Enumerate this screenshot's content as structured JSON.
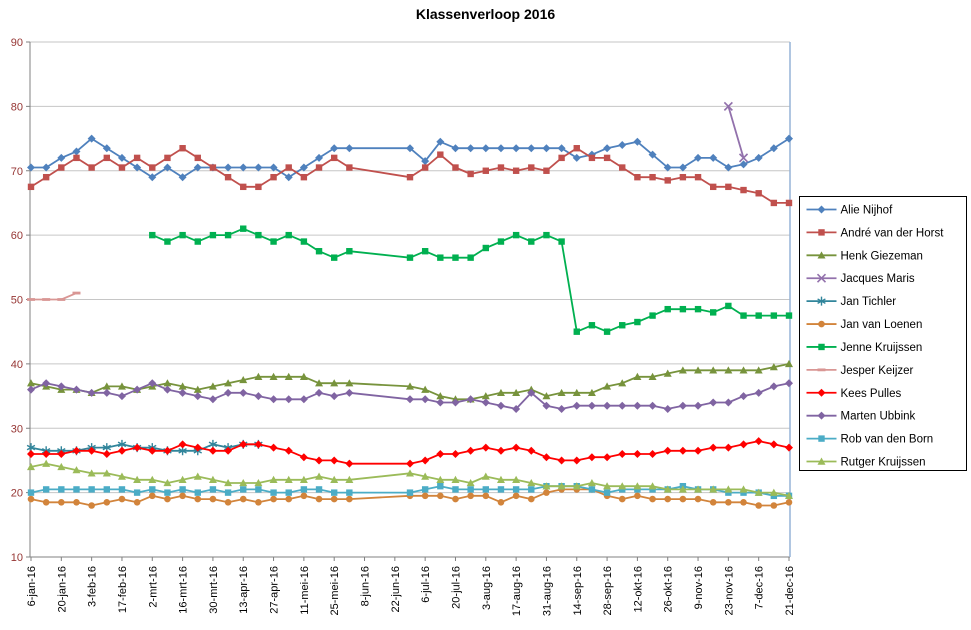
{
  "title": "Klassenverloop 2016",
  "colors": {
    "background": "#FFFFFF",
    "gridline": "#C6C6C6",
    "axis_line": "#808080",
    "y_label_color": "#963634",
    "x_label_color": "#000000",
    "plot_right_border": "#95B3D7",
    "legend_border": "#000000",
    "title_color": "#000000"
  },
  "y_axis": {
    "labels": [
      "90",
      "80",
      "70",
      "60",
      "50",
      "40",
      "30",
      "20",
      "10"
    ],
    "min": 10,
    "max": 90,
    "step": 10
  },
  "x_axis": {
    "tick_labels": [
      "6-jan-16",
      "20-jan-16",
      "3-feb-16",
      "17-feb-16",
      "2-mrt-16",
      "16-mrt-16",
      "30-mrt-16",
      "13-apr-16",
      "27-apr-16",
      "11-mei-16",
      "25-mei-16",
      "8-jun-16",
      "22-jun-16",
      "6-jul-16",
      "20-jul-16",
      "3-aug-16",
      "17-aug-16",
      "31-aug-16",
      "14-sep-16",
      "28-sep-16",
      "12-okt-16",
      "26-okt-16",
      "9-nov-16",
      "23-nov-16",
      "7-dec-16",
      "21-dec-16"
    ]
  },
  "chart_data": {
    "type": "line",
    "title": "Klassenverloop 2016",
    "xlabel": "",
    "ylabel": "",
    "ylim": [
      10,
      90
    ],
    "grid": true,
    "legend_position": "right",
    "x": [
      "6-jan-16",
      "13-jan-16",
      "20-jan-16",
      "27-jan-16",
      "3-feb-16",
      "10-feb-16",
      "17-feb-16",
      "24-feb-16",
      "2-mrt-16",
      "9-mrt-16",
      "16-mrt-16",
      "23-mrt-16",
      "30-mrt-16",
      "6-apr-16",
      "13-apr-16",
      "20-apr-16",
      "27-apr-16",
      "4-mei-16",
      "11-mei-16",
      "18-mei-16",
      "25-mei-16",
      "1-jun-16",
      "8-jun-16",
      "15-jun-16",
      "22-jun-16",
      "29-jun-16",
      "6-jul-16",
      "13-jul-16",
      "20-jul-16",
      "27-jul-16",
      "3-aug-16",
      "10-aug-16",
      "17-aug-16",
      "24-aug-16",
      "31-aug-16",
      "7-sep-16",
      "14-sep-16",
      "21-sep-16",
      "28-sep-16",
      "5-okt-16",
      "12-okt-16",
      "19-okt-16",
      "26-okt-16",
      "2-nov-16",
      "9-nov-16",
      "16-nov-16",
      "23-nov-16",
      "30-nov-16",
      "7-dec-16",
      "14-dec-16",
      "21-dec-16"
    ],
    "series": [
      {
        "name": "Alie Nijhof",
        "color": "#4F81BD",
        "marker": "diamond",
        "values": [
          70.5,
          70.5,
          72,
          73,
          75,
          73.5,
          72,
          70.5,
          69,
          70.5,
          69,
          70.5,
          70.5,
          70.5,
          70.5,
          70.5,
          70.5,
          69,
          70.5,
          72,
          73.5,
          73.5,
          null,
          null,
          null,
          73.5,
          71.5,
          74.5,
          73.5,
          73.5,
          73.5,
          73.5,
          73.5,
          73.5,
          73.5,
          73.5,
          72,
          72.5,
          73.5,
          74,
          74.5,
          72.5,
          70.5,
          70.5,
          72,
          72,
          70.5,
          71,
          72,
          73.5,
          75
        ]
      },
      {
        "name": "André van der Horst",
        "color": "#C0504D",
        "marker": "square",
        "values": [
          67.5,
          69,
          70.5,
          72,
          70.5,
          72,
          70.5,
          72,
          70.5,
          72,
          73.5,
          72,
          70.5,
          69,
          67.5,
          67.5,
          69,
          70.5,
          69,
          70.5,
          72,
          70.5,
          null,
          null,
          null,
          69,
          70.5,
          72.5,
          70.5,
          69.5,
          70,
          70.5,
          70,
          70.5,
          70,
          72,
          73.5,
          72,
          72,
          70.5,
          69,
          69,
          68.5,
          69,
          69,
          67.5,
          67.5,
          67,
          66.5,
          65,
          65
        ]
      },
      {
        "name": "Henk Giezeman",
        "color": "#77933C",
        "marker": "triangle",
        "values": [
          37,
          36.5,
          36,
          36,
          35.5,
          36.5,
          36.5,
          36,
          36.5,
          37,
          36.5,
          36,
          36.5,
          37,
          37.5,
          38,
          38,
          38,
          38,
          37,
          37,
          37,
          null,
          null,
          null,
          36.5,
          36,
          35,
          34.5,
          34.5,
          35,
          35.5,
          35.5,
          36,
          35,
          35.5,
          35.5,
          35.5,
          36.5,
          37,
          38,
          38,
          38.5,
          39,
          39,
          39,
          39,
          39,
          39,
          39.5,
          40
        ]
      },
      {
        "name": "Jacques Maris",
        "color": "#9271AC",
        "marker": "x",
        "values": [
          null,
          null,
          null,
          null,
          null,
          null,
          null,
          null,
          null,
          null,
          null,
          null,
          null,
          null,
          null,
          null,
          null,
          null,
          null,
          null,
          null,
          null,
          null,
          null,
          null,
          null,
          null,
          null,
          null,
          null,
          null,
          null,
          null,
          null,
          null,
          null,
          null,
          null,
          null,
          null,
          null,
          null,
          null,
          null,
          null,
          null,
          80,
          72,
          null,
          null,
          null
        ]
      },
      {
        "name": "Jan Tichler",
        "color": "#31859B",
        "marker": "asterisk",
        "values": [
          27,
          26.5,
          26.5,
          26.5,
          27,
          27,
          27.5,
          27,
          27,
          26.5,
          26.5,
          26.5,
          27.5,
          27,
          27.5,
          27.5,
          null,
          null,
          null,
          null,
          null,
          null,
          null,
          null,
          null,
          null,
          null,
          null,
          null,
          null,
          null,
          null,
          null,
          null,
          null,
          null,
          null,
          null,
          null,
          null,
          null,
          null,
          null,
          null,
          null,
          null,
          null,
          null,
          null,
          null,
          null
        ]
      },
      {
        "name": "Jan van Loenen",
        "color": "#D2843B",
        "marker": "circle",
        "values": [
          19,
          18.5,
          18.5,
          18.5,
          18,
          18.5,
          19,
          18.5,
          19.5,
          19,
          19.5,
          19,
          19,
          18.5,
          19,
          18.5,
          19,
          19,
          19.5,
          19,
          19,
          19,
          null,
          null,
          null,
          19.5,
          19.5,
          19.5,
          19,
          19.5,
          19.5,
          18.5,
          19.5,
          19,
          20,
          20.5,
          20.5,
          20.5,
          19.5,
          19,
          19.5,
          19,
          19,
          19,
          19,
          18.5,
          18.5,
          18.5,
          18,
          18,
          18.5
        ]
      },
      {
        "name": "Jenne Kruijssen",
        "color": "#00B050",
        "marker": "square",
        "values": [
          null,
          null,
          null,
          null,
          null,
          null,
          null,
          null,
          60,
          59,
          60,
          59,
          60,
          60,
          61,
          60,
          59,
          60,
          59,
          57.5,
          56.5,
          57.5,
          null,
          null,
          null,
          56.5,
          57.5,
          56.5,
          56.5,
          56.5,
          58,
          59,
          60,
          59,
          60,
          59,
          45,
          46,
          45,
          46,
          46.5,
          47.5,
          48.5,
          48.5,
          48.5,
          48,
          49,
          47.5,
          47.5,
          47.5,
          47.5
        ]
      },
      {
        "name": "Jesper Keijzer",
        "color": "#D99694",
        "marker": "dash",
        "values": [
          50,
          50,
          50,
          51,
          null,
          null,
          null,
          null,
          null,
          null,
          null,
          null,
          null,
          null,
          null,
          null,
          null,
          null,
          null,
          null,
          null,
          null,
          null,
          null,
          null,
          null,
          null,
          null,
          null,
          null,
          null,
          null,
          null,
          null,
          null,
          null,
          null,
          null,
          null,
          null,
          null,
          null,
          null,
          null,
          null,
          null,
          null,
          null,
          null,
          null,
          null
        ]
      },
      {
        "name": "Kees Pulles",
        "color": "#FF0000",
        "marker": "diamond",
        "values": [
          26,
          26,
          26,
          26.5,
          26.5,
          26,
          26.5,
          27,
          26.5,
          26.5,
          27.5,
          27,
          26.5,
          26.5,
          27.5,
          27.5,
          27,
          26.5,
          25.5,
          25,
          25,
          24.5,
          null,
          null,
          null,
          24.5,
          25,
          26,
          26,
          26.5,
          27,
          26.5,
          27,
          26.5,
          25.5,
          25,
          25,
          25.5,
          25.5,
          26,
          26,
          26,
          26.5,
          26.5,
          26.5,
          27,
          27,
          27.5,
          28,
          27.5,
          27
        ]
      },
      {
        "name": "Marten Ubbink",
        "color": "#8064A2",
        "marker": "diamond",
        "values": [
          36,
          37,
          36.5,
          36,
          35.5,
          35.5,
          35,
          36,
          37,
          36,
          35.5,
          35,
          34.5,
          35.5,
          35.5,
          35,
          34.5,
          34.5,
          34.5,
          35.5,
          35,
          35.5,
          null,
          null,
          null,
          34.5,
          34.5,
          34,
          34,
          34.5,
          34,
          33.5,
          33,
          35.5,
          33.5,
          33,
          33.5,
          33.5,
          33.5,
          33.5,
          33.5,
          33.5,
          33,
          33.5,
          33.5,
          34,
          34,
          35,
          35.5,
          36.5,
          37
        ]
      },
      {
        "name": "Rob van den Born",
        "color": "#4BACC6",
        "marker": "square",
        "values": [
          20,
          20.5,
          20.5,
          20.5,
          20.5,
          20.5,
          20.5,
          20,
          20.5,
          20,
          20.5,
          20,
          20.5,
          20,
          20.5,
          20.5,
          20,
          20,
          20.5,
          20.5,
          20,
          20,
          null,
          null,
          null,
          20,
          20.5,
          21,
          20.5,
          20.5,
          20.5,
          20.5,
          20.5,
          20.5,
          21,
          21,
          21,
          20.5,
          20,
          20.5,
          20.5,
          20.5,
          20.5,
          21,
          20.5,
          20.5,
          20,
          20,
          20,
          19.5,
          19.5
        ]
      },
      {
        "name": "Rutger Kruijssen",
        "color": "#9BBB59",
        "marker": "triangle",
        "values": [
          24,
          24.5,
          24,
          23.5,
          23,
          23,
          22.5,
          22,
          22,
          21.5,
          22,
          22.5,
          22,
          21.5,
          21.5,
          21.5,
          22,
          22,
          22,
          22.5,
          22,
          22,
          null,
          null,
          null,
          23,
          22.5,
          22,
          22,
          21.5,
          22.5,
          22,
          22,
          21.5,
          21,
          21,
          21,
          21.5,
          21,
          21,
          21,
          21,
          20.5,
          20.5,
          20.5,
          20.5,
          20.5,
          20.5,
          20,
          20,
          19.5
        ]
      }
    ]
  }
}
